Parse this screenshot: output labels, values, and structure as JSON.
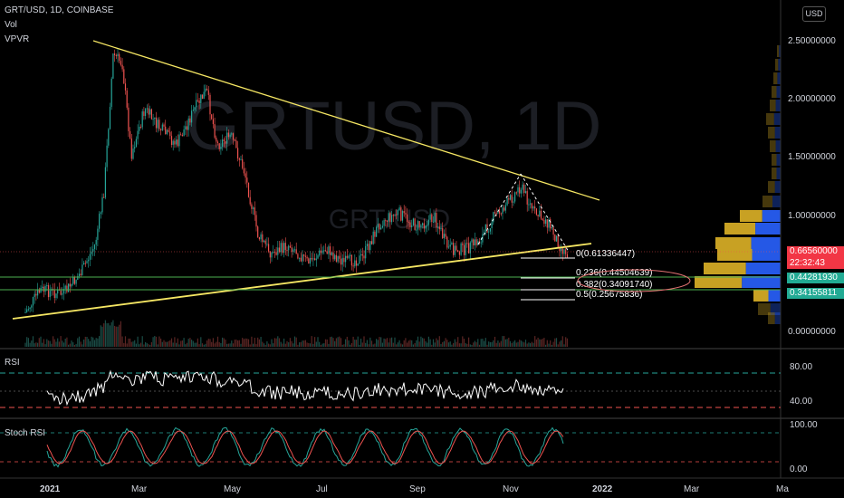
{
  "header": {
    "symbol_line": "GRT/USD, 1D, COINBASE",
    "vol_label": "Vol",
    "vpvr_label": "VPVR"
  },
  "currency_button": "USD",
  "watermark": {
    "main": "GRTUSD, 1D",
    "sub": "GRT/USD"
  },
  "price_axis": {
    "ticks": [
      "2.50000000",
      "2.00000000",
      "1.50000000",
      "1.00000000",
      "0.00000000"
    ],
    "badges": {
      "current_price": "0.66560000",
      "countdown": "22:32:43",
      "level_1": "0.44281930",
      "level_2": "0.34155811"
    }
  },
  "fib_levels": [
    {
      "label": "0(0.61336447)"
    },
    {
      "label": "0.236(0.44504639)"
    },
    {
      "label": "0.382(0.34091740)"
    },
    {
      "label": "0.5(0.25675836)"
    }
  ],
  "rsi_pane": {
    "label": "RSI",
    "ticks": [
      "80.00",
      "40.00"
    ]
  },
  "stoch_pane": {
    "label": "Stoch RSI",
    "ticks": [
      "100.00",
      "0.00"
    ]
  },
  "time_axis": {
    "labels": [
      "2021",
      "Mar",
      "May",
      "Jul",
      "Sep",
      "Nov",
      "2022",
      "Mar",
      "Ma"
    ]
  },
  "colors": {
    "up": "#26a69a",
    "down": "#ef5350",
    "trendline": "#f5e663",
    "fib_zero": "#ffffff",
    "green_level": "#4caf50",
    "red_badge": "#f23645",
    "green_badge": "#22ab94",
    "vpvr_gold": "#c8a123",
    "vpvr_blue": "#2962ff",
    "rsi_line": "#ffffff",
    "stoch_k": "#26a69a",
    "stoch_d": "#ef5350"
  }
}
